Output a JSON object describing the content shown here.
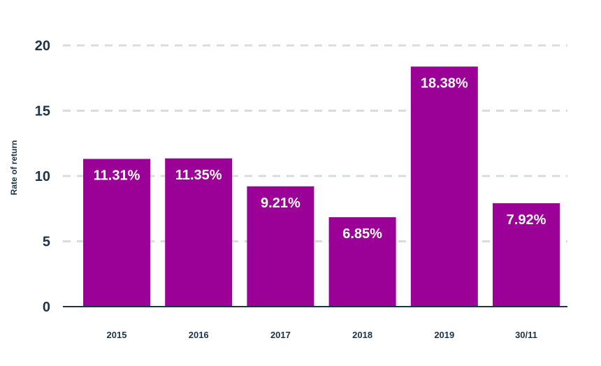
{
  "colors": {
    "bar": "#9b0097",
    "axis_text": "#1d3446",
    "grid": "#d9dcdf",
    "label_text": "#ffffff"
  },
  "chart_data": {
    "type": "bar",
    "title": "",
    "xlabel": "",
    "ylabel": "Rate of return",
    "categories": [
      "2015",
      "2016",
      "2017",
      "2018",
      "2019",
      "30/11"
    ],
    "values": [
      11.31,
      11.35,
      9.21,
      6.85,
      18.38,
      7.92
    ],
    "data_labels": [
      "11.31%",
      "11.35%",
      "9.21%",
      "6.85%",
      "18.38%",
      "7.92%"
    ],
    "ylim": [
      0,
      20
    ],
    "yticks": [
      "0",
      "5",
      "10",
      "15",
      "20"
    ],
    "grid": true,
    "legend": "none"
  }
}
